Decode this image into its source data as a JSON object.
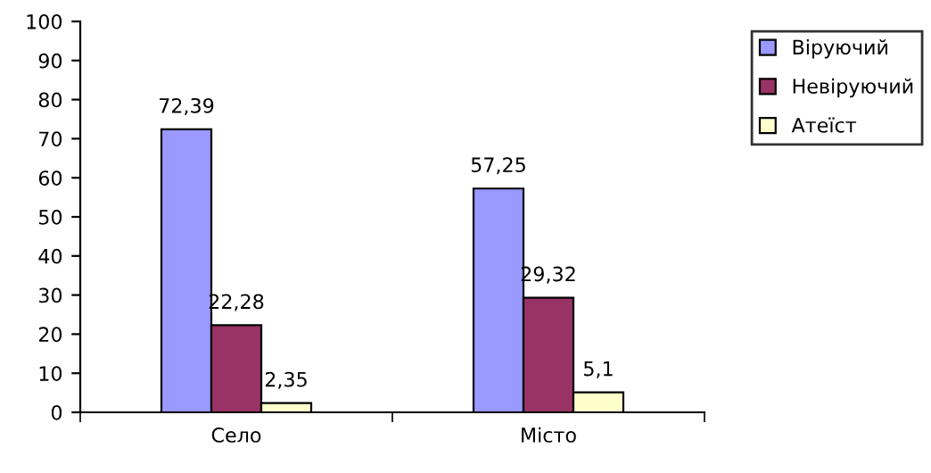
{
  "chart_data": {
    "type": "bar",
    "categories": [
      "Село",
      "Місто"
    ],
    "series": [
      {
        "name": "Віруючий",
        "color": "#9999ff",
        "values": [
          72.39,
          57.25
        ],
        "value_labels": [
          "72,39",
          "57,25"
        ]
      },
      {
        "name": "Невіруючий",
        "color": "#993366",
        "values": [
          22.28,
          29.32
        ],
        "value_labels": [
          "22,28",
          "29,32"
        ]
      },
      {
        "name": "Атеїст",
        "color": "#ffffcc",
        "values": [
          2.35,
          5.1
        ],
        "value_labels": [
          "2,35",
          "5,1"
        ]
      }
    ],
    "ylim": [
      0,
      100
    ],
    "yticks": [
      0,
      10,
      20,
      30,
      40,
      50,
      60,
      70,
      80,
      90,
      100
    ],
    "grid": false,
    "legend": "top right"
  }
}
